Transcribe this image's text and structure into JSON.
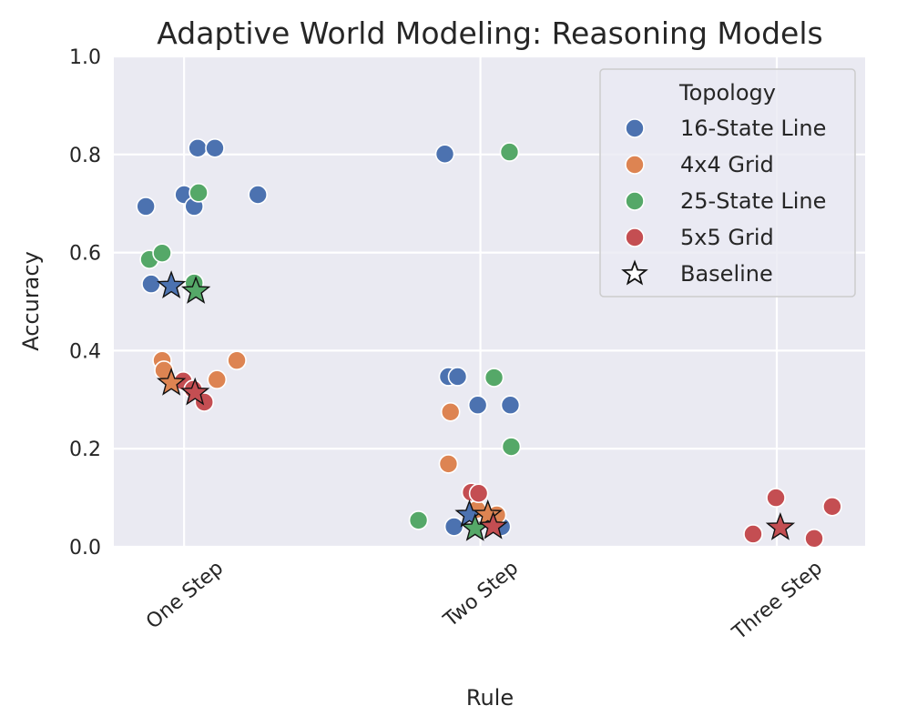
{
  "chart_data": {
    "type": "scatter",
    "title": "Adaptive World Modeling: Reasoning Models",
    "xlabel": "Rule",
    "ylabel": "Accuracy",
    "categories": [
      "One Step",
      "Two Step",
      "Three Step"
    ],
    "xlim": [
      -0.237,
      2.298
    ],
    "ylim": [
      0,
      1
    ],
    "yticks": [
      "0.0",
      "0.2",
      "0.4",
      "0.6",
      "0.8",
      "1.0"
    ],
    "grid": true,
    "legend": {
      "title": "Topology",
      "placement": "top-right",
      "entries": [
        "16-State Line",
        "4x4 Grid",
        "25-State Line",
        "5x5 Grid",
        "Baseline"
      ]
    },
    "series": [
      {
        "name": "16-State Line",
        "color": "#4C72B0",
        "points": [
          [
            0.046,
            0.813
          ],
          [
            0.104,
            0.813
          ],
          [
            -0.129,
            0.694
          ],
          [
            0,
            0.718
          ],
          [
            0.034,
            0.694
          ],
          [
            0.249,
            0.718
          ],
          [
            -0.111,
            0.536
          ],
          [
            0.892,
            0.347
          ],
          [
            0.923,
            0.347
          ],
          [
            0.991,
            0.289
          ],
          [
            1.101,
            0.289
          ],
          [
            0.88,
            0.801
          ],
          [
            0.911,
            0.041
          ],
          [
            1.071,
            0.041
          ]
        ],
        "baseline": [
          [
            -0.043,
            0.532
          ],
          [
            0.963,
            0.065
          ]
        ]
      },
      {
        "name": "4x4 Grid",
        "color": "#DD8452",
        "points": [
          [
            -0.074,
            0.38
          ],
          [
            -0.068,
            0.36
          ],
          [
            0.111,
            0.341
          ],
          [
            0.178,
            0.38
          ],
          [
            0.899,
            0.275
          ],
          [
            0.892,
            0.169
          ],
          [
            0.988,
            0.076
          ],
          [
            1.055,
            0.065
          ]
        ],
        "baseline": [
          [
            -0.043,
            0.334
          ],
          [
            1.025,
            0.065
          ]
        ]
      },
      {
        "name": "25-State Line",
        "color": "#55A868",
        "points": [
          [
            0.049,
            0.722
          ],
          [
            -0.117,
            0.586
          ],
          [
            -0.074,
            0.599
          ],
          [
            0.034,
            0.538
          ],
          [
            1.098,
            0.805
          ],
          [
            1.046,
            0.345
          ],
          [
            1.104,
            0.204
          ],
          [
            0.791,
            0.054
          ]
        ],
        "baseline": [
          [
            0.04,
            0.521
          ],
          [
            0.982,
            0.037
          ]
        ]
      },
      {
        "name": "5x5 Grid",
        "color": "#C44E52",
        "points": [
          [
            -0.003,
            0.338
          ],
          [
            0.031,
            0.321
          ],
          [
            0.068,
            0.295
          ],
          [
            0.969,
            0.111
          ],
          [
            0.994,
            0.109
          ],
          [
            1.997,
            0.1
          ],
          [
            2.187,
            0.082
          ],
          [
            1.92,
            0.026
          ],
          [
            2.126,
            0.017
          ]
        ],
        "baseline": [
          [
            0.037,
            0.314
          ],
          [
            1.043,
            0.041
          ],
          [
            2.012,
            0.039
          ]
        ]
      }
    ],
    "background": "#EAEAF2"
  }
}
